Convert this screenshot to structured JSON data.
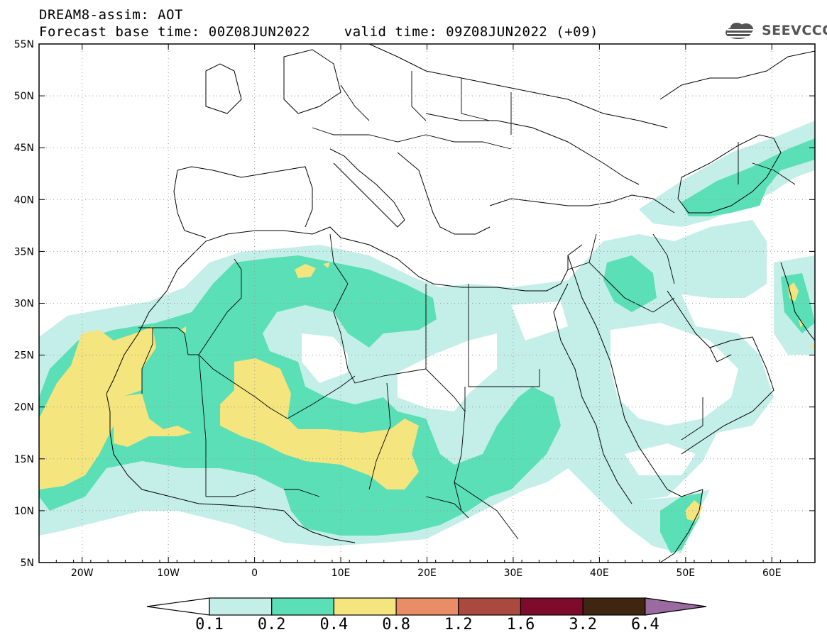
{
  "header": {
    "line1": "DREAM8-assim: AOT",
    "line2": "Forecast base time: 00Z08JUN2022    valid time: 09Z08JUN2022 (+09)"
  },
  "logo": {
    "text": "SEEVCCC",
    "icon": "cloud-icon"
  },
  "map": {
    "lon_range": [
      -25,
      65
    ],
    "lat_range": [
      5,
      55
    ],
    "lon_ticks": [
      {
        "value": -20,
        "label": "20W"
      },
      {
        "value": -10,
        "label": "10W"
      },
      {
        "value": 0,
        "label": "0"
      },
      {
        "value": 10,
        "label": "10E"
      },
      {
        "value": 20,
        "label": "20E"
      },
      {
        "value": 30,
        "label": "30E"
      },
      {
        "value": 40,
        "label": "40E"
      },
      {
        "value": 50,
        "label": "50E"
      },
      {
        "value": 60,
        "label": "60E"
      }
    ],
    "lat_ticks": [
      {
        "value": 55,
        "label": "55N"
      },
      {
        "value": 50,
        "label": "50N"
      },
      {
        "value": 45,
        "label": "45N"
      },
      {
        "value": 40,
        "label": "40N"
      },
      {
        "value": 35,
        "label": "35N"
      },
      {
        "value": 30,
        "label": "30N"
      },
      {
        "value": 25,
        "label": "25N"
      },
      {
        "value": 20,
        "label": "20N"
      },
      {
        "value": 15,
        "label": "15N"
      },
      {
        "value": 10,
        "label": "10N"
      },
      {
        "value": 5,
        "label": "5N"
      }
    ],
    "grid": true,
    "variable": "AOT"
  },
  "colorbar": {
    "bins": [
      {
        "color": "#c4efe8"
      },
      {
        "color": "#5bdfb6"
      },
      {
        "color": "#f4e57e"
      },
      {
        "color": "#e98d66"
      },
      {
        "color": "#aa4a3e"
      },
      {
        "color": "#7e0b2c"
      },
      {
        "color": "#3f2610"
      }
    ],
    "under_color": "#ffffff",
    "over_color": "#9a6aa0",
    "labels": [
      "0.1",
      "0.2",
      "0.4",
      "0.8",
      "1.2",
      "1.6",
      "3.2",
      "6.4"
    ]
  }
}
